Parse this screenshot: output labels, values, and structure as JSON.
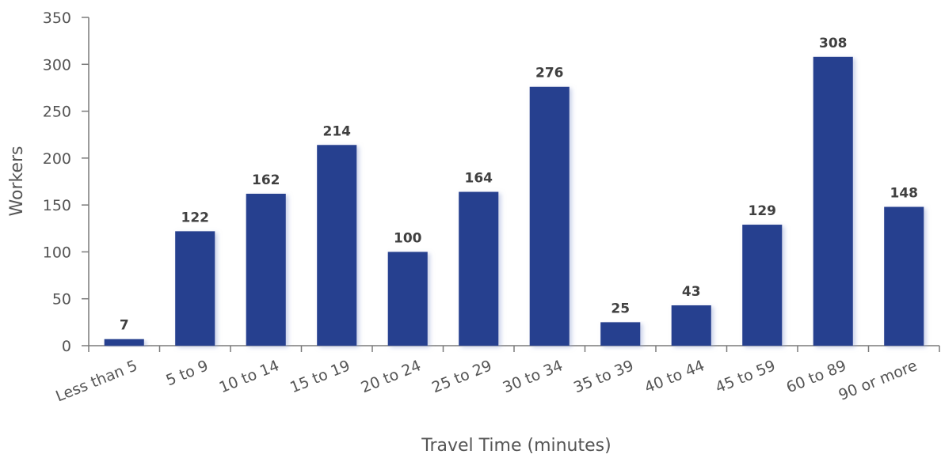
{
  "chart_data": {
    "type": "bar",
    "title": "",
    "xlabel": "Travel Time (minutes)",
    "ylabel": "Workers",
    "ylim": [
      0,
      350
    ],
    "yticks": [
      0,
      50,
      100,
      150,
      200,
      250,
      300,
      350
    ],
    "grid": false,
    "legend": "none",
    "bar_color": "#283f8f",
    "categories": [
      "Less than 5",
      "5 to 9",
      "10 to 14",
      "15 to 19",
      "20 to 24",
      "25 to 29",
      "30 to 34",
      "35 to 39",
      "40 to 44",
      "45 to 59",
      "60 to 89",
      "90 or more"
    ],
    "values": [
      7,
      122,
      162,
      214,
      100,
      164,
      276,
      25,
      43,
      129,
      308,
      148
    ],
    "data_labels": [
      "7",
      "122",
      "162",
      "214",
      "100",
      "164",
      "276",
      "25",
      "43",
      "129",
      "308",
      "148"
    ]
  }
}
